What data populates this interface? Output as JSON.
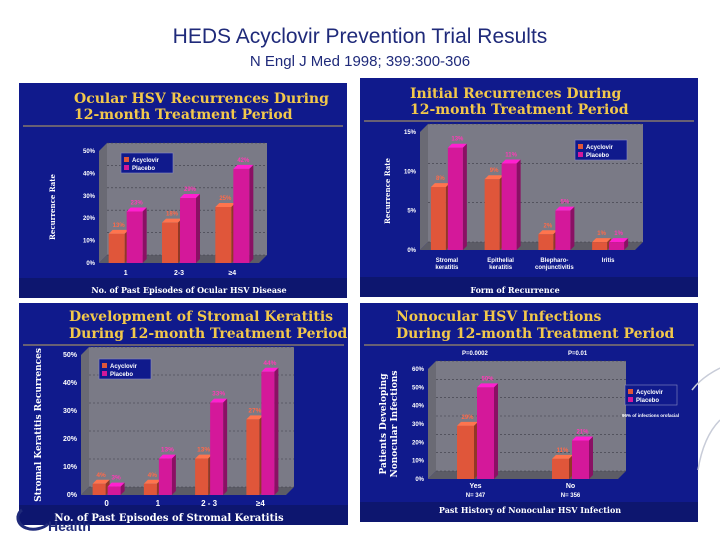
{
  "header": {
    "title": "HEDS Acyclovir Prevention Trial Results",
    "citation": "N Engl J Med 1998; 399:300-306"
  },
  "logo": {
    "text": "Health"
  },
  "colors": {
    "acyclovir": "#e0563a",
    "placebo": "#d4189a",
    "panel_bg": "#101a8c",
    "title_text": "#f2c84b"
  },
  "chart_data": [
    {
      "type": "bar",
      "title_lines": [
        "Ocular HSV Recurrences During",
        "12-month Treatment Period"
      ],
      "categories": [
        "1",
        "2-3",
        "≥4"
      ],
      "series": [
        {
          "name": "Acyclovir",
          "values": [
            13,
            18,
            25
          ]
        },
        {
          "name": "Placebo",
          "values": [
            23,
            29,
            42
          ]
        }
      ],
      "data_labels": [
        [
          "13%",
          "18%",
          "25%"
        ],
        [
          "23%",
          "29%",
          "42%"
        ]
      ],
      "yticks": [
        "0%",
        "10%",
        "20%",
        "30%",
        "40%",
        "50%"
      ],
      "ylim": [
        0,
        50
      ],
      "ylabel": "Recurrence Rate",
      "xlabel": "No. of Past Episodes of Ocular HSV Disease",
      "legend": "top-left",
      "notes": []
    },
    {
      "type": "bar",
      "title_lines": [
        "Initial Recurrences During",
        "12-month Treatment Period"
      ],
      "categories": [
        "Stromal keratitis",
        "Epithelial keratitis",
        "Blepharo-conjunctivitis",
        "Iritis"
      ],
      "series": [
        {
          "name": "Acyclovir",
          "values": [
            8,
            9,
            2,
            1
          ]
        },
        {
          "name": "Placebo",
          "values": [
            13,
            11,
            5,
            1
          ]
        }
      ],
      "data_labels": [
        [
          "8%",
          "9%",
          "2%",
          "1%"
        ],
        [
          "13%",
          "11%",
          "5%",
          "1%"
        ]
      ],
      "yticks": [
        "0%",
        "5%",
        "10%",
        "15%"
      ],
      "ylim": [
        0,
        15
      ],
      "ylabel": "Recurrence Rate",
      "xlabel": "Form of Recurrence",
      "legend": "top-right",
      "notes": []
    },
    {
      "type": "bar",
      "title_lines": [
        "Development of Stromal Keratitis",
        "During 12-month Treatment Period"
      ],
      "categories": [
        "0",
        "1",
        "2 - 3",
        "≥4"
      ],
      "series": [
        {
          "name": "Acyclovir",
          "values": [
            4,
            4,
            13,
            27
          ]
        },
        {
          "name": "Placebo",
          "values": [
            3,
            13,
            33,
            44
          ]
        }
      ],
      "data_labels": [
        [
          "4%",
          "4%",
          "13%",
          "27%"
        ],
        [
          "3%",
          "13%",
          "33%",
          "44%"
        ]
      ],
      "yticks": [
        "0%",
        "10%",
        "20%",
        "30%",
        "40%",
        "50%"
      ],
      "ylim": [
        0,
        50
      ],
      "ylabel": "Stromal Keratitis Recurrences",
      "xlabel": "No. of Past Episodes of Stromal Keratitis",
      "legend": "top-left",
      "notes": []
    },
    {
      "type": "bar",
      "title_lines": [
        "Nonocular HSV Infections",
        "During 12-month Treatment Period"
      ],
      "categories": [
        "Yes",
        "No"
      ],
      "category_sublabels": [
        "N= 347",
        "N= 356"
      ],
      "series": [
        {
          "name": "Acyclovir",
          "values": [
            29,
            11
          ]
        },
        {
          "name": "Placebo",
          "values": [
            50,
            21
          ]
        }
      ],
      "data_labels": [
        [
          "29%",
          "11%"
        ],
        [
          "50%",
          "21%"
        ]
      ],
      "yticks": [
        "0%",
        "10%",
        "20%",
        "30%",
        "40%",
        "50%",
        "60%"
      ],
      "ylim": [
        0,
        60
      ],
      "ylabel_lines": [
        "Patients Developing",
        "Nonocular Infections"
      ],
      "xlabel": "Past History of Nonocular HSV Infection",
      "legend": "right",
      "notes": [
        "P=0.0002",
        "P=0.01",
        "96% of infections orofacial"
      ]
    }
  ]
}
